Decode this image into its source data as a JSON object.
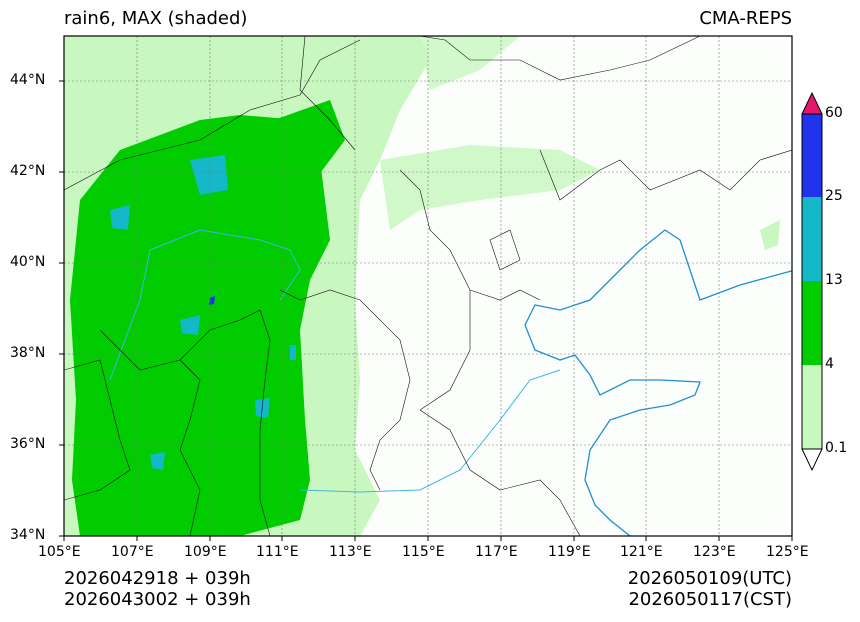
{
  "title": {
    "left": "rain6, MAX (shaded)",
    "right": "CMA-REPS"
  },
  "axes": {
    "x_ticks": [
      "105°E",
      "107°E",
      "109°E",
      "111°E",
      "113°E",
      "115°E",
      "117°E",
      "119°E",
      "121°E",
      "123°E",
      "125°E"
    ],
    "y_ticks": [
      "44°N",
      "42°N",
      "40°N",
      "38°N",
      "36°N",
      "34°N"
    ]
  },
  "colorbar": {
    "labels": [
      "60",
      "25",
      "13",
      "4",
      "0.1"
    ],
    "colors": {
      "over": "#e6156b",
      "c25_60": "#2233ee",
      "c13_25": "#14b8c8",
      "c4_13": "#00cc00",
      "c01_4": "#c8f7c0"
    }
  },
  "footer": {
    "init_utc": "2026042918  +  039h",
    "init_cst": "2026043002  +  039h",
    "valid_utc": "2026050109(UTC)",
    "valid_cst": "2026050117(CST)"
  }
}
